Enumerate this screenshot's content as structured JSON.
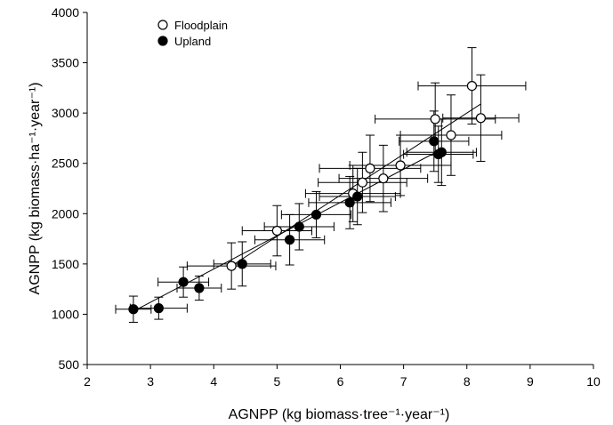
{
  "chart_data": {
    "type": "scatter",
    "xlabel": "AGNPP (kg biomass·tree⁻¹·year⁻¹)",
    "ylabel": "AGNPP (kg biomass·ha⁻¹·year⁻¹)",
    "xlim": [
      2,
      10
    ],
    "ylim": [
      500,
      4000
    ],
    "xticks": [
      "2",
      "3",
      "4",
      "5",
      "6",
      "7",
      "8",
      "9",
      "10"
    ],
    "yticks": [
      "500",
      "1000",
      "1500",
      "2000",
      "2500",
      "3000",
      "3500",
      "4000"
    ],
    "legend_position": "top-left",
    "series": [
      {
        "name": "Floodplain",
        "marker": "open-circle",
        "points": [
          {
            "x": 4.28,
            "y": 1480,
            "xerr": 0.7,
            "yerr": 230
          },
          {
            "x": 5.0,
            "y": 1830,
            "xerr": 0.55,
            "yerr": 250
          },
          {
            "x": 6.2,
            "y": 2200,
            "xerr": 0.75,
            "yerr": 280
          },
          {
            "x": 6.35,
            "y": 2310,
            "xerr": 0.7,
            "yerr": 300
          },
          {
            "x": 6.47,
            "y": 2450,
            "xerr": 0.8,
            "yerr": 330
          },
          {
            "x": 6.68,
            "y": 2350,
            "xerr": 0.7,
            "yerr": 330
          },
          {
            "x": 6.95,
            "y": 2480,
            "xerr": 0.8,
            "yerr": 300
          },
          {
            "x": 7.5,
            "y": 2940,
            "xerr": 0.95,
            "yerr": 360
          },
          {
            "x": 7.75,
            "y": 2780,
            "xerr": 0.8,
            "yerr": 400
          },
          {
            "x": 8.08,
            "y": 3270,
            "xerr": 0.85,
            "yerr": 380
          },
          {
            "x": 8.22,
            "y": 2950,
            "xerr": 0.6,
            "yerr": 430
          }
        ]
      },
      {
        "name": "Upland",
        "marker": "filled-circle",
        "points": [
          {
            "x": 2.73,
            "y": 1050,
            "xerr": 0.28,
            "yerr": 130
          },
          {
            "x": 3.13,
            "y": 1060,
            "xerr": 0.45,
            "yerr": 110
          },
          {
            "x": 3.52,
            "y": 1320,
            "xerr": 0.4,
            "yerr": 150
          },
          {
            "x": 3.77,
            "y": 1260,
            "xerr": 0.35,
            "yerr": 120
          },
          {
            "x": 4.45,
            "y": 1500,
            "xerr": 0.45,
            "yerr": 220
          },
          {
            "x": 5.2,
            "y": 1740,
            "xerr": 0.55,
            "yerr": 250
          },
          {
            "x": 5.35,
            "y": 1870,
            "xerr": 0.55,
            "yerr": 230
          },
          {
            "x": 5.62,
            "y": 1990,
            "xerr": 0.55,
            "yerr": 230
          },
          {
            "x": 6.15,
            "y": 2110,
            "xerr": 0.65,
            "yerr": 260
          },
          {
            "x": 6.27,
            "y": 2170,
            "xerr": 0.6,
            "yerr": 280
          },
          {
            "x": 7.48,
            "y": 2720,
            "xerr": 0.55,
            "yerr": 300
          },
          {
            "x": 7.55,
            "y": 2590,
            "xerr": 0.55,
            "yerr": 280
          },
          {
            "x": 7.6,
            "y": 2610,
            "xerr": 0.55,
            "yerr": 330
          }
        ]
      }
    ],
    "fit_lines": [
      {
        "series": "Floodplain",
        "x": [
          4.28,
          8.22
        ],
        "y": [
          1480,
          3090
        ]
      },
      {
        "series": "Upland",
        "x": [
          2.73,
          7.6
        ],
        "y": [
          1030,
          2640
        ]
      }
    ]
  }
}
